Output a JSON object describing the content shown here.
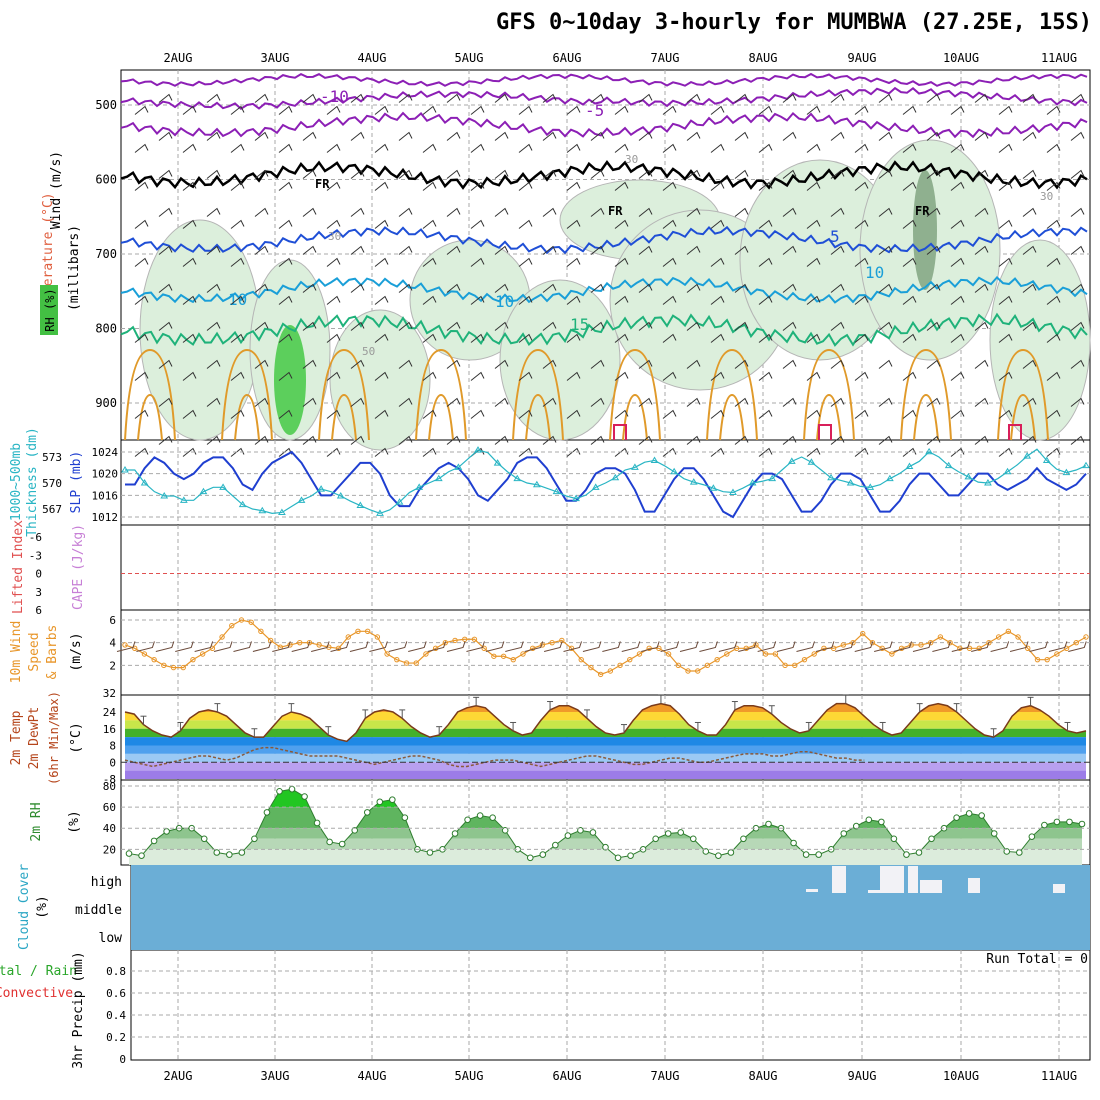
{
  "title": "GFS 0~10day 3-hourly for MUMBWA (27.25E, 15S)",
  "dates": [
    "2AUG",
    "3AUG",
    "4AUG",
    "5AUG",
    "6AUG",
    "7AUG",
    "8AUG",
    "9AUG",
    "10AUG",
    "11AUG"
  ],
  "run_total": "Run Total = 0",
  "colors": {
    "wind_barb": "#333333",
    "temp_purple": "#8c1fb5",
    "temp_blue": "#1f4fd6",
    "temp_cyan": "#1a9fd8",
    "temp_green": "#1fb27a",
    "temp_orange": "#e09a2a",
    "temp_red": "#d81f5a",
    "freezing": "#000000",
    "slp": "#1f3fd0",
    "thickness": "#29b5c4",
    "lifted_index": "#e05050",
    "cape": "#c77fd6",
    "wind_speed": "#e8962a",
    "cloud": "#6baed6",
    "rh_green": "#2bbf2b"
  },
  "panels": {
    "upper": {
      "ylabels": [
        "Wind (m/s)",
        "Temperature (°C)",
        "RH (%)",
        "(millibars)"
      ],
      "pressure_ticks": [
        "500",
        "600",
        "700",
        "800",
        "900"
      ],
      "contour_labels": {
        "m10": "-10",
        "m5": "-5",
        "fr": "FR",
        "t5": "5",
        "t10": "10",
        "t15": "15",
        "rh30": "30",
        "rh50": "50",
        "rh10": "10"
      }
    },
    "thickness": {
      "ylabels": [
        "1000~500mb",
        "Thickness (dm)",
        "SLP (mb)"
      ],
      "left_ticks": [
        "573",
        "570",
        "567"
      ],
      "right_ticks": [
        "1024",
        "1020",
        "1016",
        "1012"
      ]
    },
    "cape": {
      "ylabels": [
        "Lifted Index",
        "CAPE (J/kg)"
      ],
      "ticks": [
        "-6",
        "-3",
        "0",
        "3",
        "6"
      ]
    },
    "wind": {
      "ylabels": [
        "10m Wind",
        "Speed",
        "& Barbs",
        "(m/s)"
      ],
      "ticks": [
        "6",
        "4",
        "2",
        "32"
      ]
    },
    "temp": {
      "ylabels": [
        "2m Temp",
        "2m DewPt",
        "(6hr Min/Max)",
        "(°C)"
      ],
      "ticks": [
        "24",
        "16",
        "8",
        "0",
        "-8"
      ]
    },
    "rh": {
      "ylabels": [
        "2m RH",
        "(%)"
      ],
      "ticks": [
        "80",
        "60",
        "40",
        "20"
      ]
    },
    "cloud": {
      "ylabels": [
        "Cloud Cover",
        "(%)"
      ],
      "ticks": [
        "high",
        "middle",
        "low"
      ]
    },
    "precip": {
      "ylabels": [
        "Total / Rain",
        "Convective",
        "3hr Precip (mm)"
      ],
      "ticks": [
        "0.8",
        "0.6",
        "0.4",
        "0.2",
        "0"
      ]
    }
  },
  "chart_data": [
    {
      "type": "line",
      "panel": "thickness_slp",
      "x_labels_note": "3-hourly steps from 2AUG to 11AUG",
      "series": [
        {
          "name": "SLP (mb)",
          "values": [
            1018,
            1018,
            1021,
            1023,
            1022,
            1020,
            1019,
            1020,
            1022,
            1023,
            1023,
            1021,
            1018,
            1017,
            1020,
            1022,
            1023,
            1024,
            1022,
            1019,
            1016,
            1016,
            1018,
            1020,
            1022,
            1022,
            1020,
            1016,
            1014,
            1014,
            1017,
            1019,
            1021,
            1022,
            1021,
            1019,
            1016,
            1015,
            1017,
            1019,
            1022,
            1023,
            1023,
            1021,
            1018,
            1015,
            1015,
            1017,
            1020,
            1021,
            1021,
            1020,
            1017,
            1013,
            1013,
            1016,
            1019,
            1021,
            1021,
            1019,
            1016,
            1013,
            1012,
            1015,
            1018,
            1020,
            1020,
            1019,
            1016,
            1013,
            1013,
            1015,
            1018,
            1020,
            1020,
            1019,
            1016,
            1013,
            1013,
            1015,
            1018,
            1020,
            1020,
            1018,
            1016,
            1016,
            1018,
            1020,
            1020,
            1018,
            1017,
            1018,
            1019,
            1021,
            1019,
            1018,
            1017,
            1018,
            1020
          ]
        },
        {
          "name": "1000~500mb Thickness (dm)",
          "values": [
            571.5,
            571.5,
            570.0,
            569.0,
            568.5,
            568.5,
            568.0,
            568.0,
            569.0,
            569.5,
            569.5,
            568.5,
            567.5,
            567.0,
            566.8,
            566.5,
            566.6,
            567.3,
            568.0,
            568.5,
            569.3,
            569.0,
            568.5,
            567.9,
            567.4,
            566.9,
            566.5,
            566.9,
            567.8,
            568.9,
            569.5,
            570.0,
            570.5,
            571.3,
            571.8,
            572.8,
            573.8,
            573.5,
            572.3,
            571.3,
            570.5,
            570.0,
            569.8,
            569.4,
            569.0,
            568.5,
            568.2,
            568.6,
            569.5,
            570.0,
            570.6,
            571.5,
            571.8,
            572.4,
            572.6,
            572.0,
            571.3,
            570.5,
            570.1,
            569.8,
            569.4,
            569.0,
            568.9,
            569.4,
            570.0,
            570.2,
            570.5,
            571.5,
            572.5,
            573.0,
            572.4,
            571.5,
            570.6,
            570.3,
            570.0,
            569.6,
            569.5,
            569.8,
            570.5,
            571.1,
            571.9,
            572.5,
            573.6,
            573.0,
            572.0,
            571.3,
            570.7,
            570.1,
            570.0,
            570.5,
            571.3,
            572.1,
            573.1,
            573.9,
            572.6,
            571.6,
            571.2,
            571.5,
            572.0
          ]
        }
      ]
    },
    {
      "type": "line",
      "panel": "10m_wind",
      "series": [
        {
          "name": "10m Wind Speed (m/s)",
          "values": [
            3.8,
            3.5,
            3.0,
            2.5,
            2.0,
            1.8,
            1.8,
            2.5,
            3.0,
            3.5,
            4.5,
            5.5,
            6.0,
            5.8,
            5.0,
            4.2,
            3.6,
            3.8,
            4.0,
            4.0,
            3.8,
            3.6,
            3.5,
            4.5,
            5.0,
            5.0,
            4.5,
            3.0,
            2.5,
            2.2,
            2.2,
            3.0,
            3.5,
            4.0,
            4.2,
            4.3,
            4.3,
            3.5,
            2.8,
            2.8,
            2.5,
            3.0,
            3.5,
            3.8,
            4.0,
            4.2,
            3.5,
            2.5,
            1.8,
            1.2,
            1.5,
            2.0,
            2.5,
            3.0,
            3.5,
            3.5,
            3.0,
            2.0,
            1.5,
            1.5,
            2.0,
            2.5,
            3.0,
            3.5,
            3.5,
            3.8,
            3.0,
            3.0,
            2.0,
            2.0,
            2.5,
            3.0,
            3.5,
            3.5,
            3.8,
            4.0,
            4.8,
            4.0,
            3.5,
            3.0,
            3.5,
            3.8,
            3.8,
            4.0,
            4.5,
            4.0,
            3.5,
            3.5,
            3.5,
            4.0,
            4.5,
            5.0,
            4.5,
            3.5,
            2.5,
            2.5,
            3.0,
            3.5,
            4.0,
            4.5
          ]
        }
      ]
    },
    {
      "type": "area",
      "panel": "2m_temp",
      "series": [
        {
          "name": "2m Temp (°C)",
          "values": [
            24,
            23,
            18,
            15,
            13,
            12,
            15,
            21,
            24,
            25,
            24,
            22,
            18,
            14,
            12,
            12,
            17,
            22,
            24,
            23,
            21,
            17,
            13,
            11,
            10,
            14,
            21,
            24,
            25,
            24,
            21,
            17,
            14,
            12,
            13,
            18,
            24,
            26,
            27,
            26,
            22,
            18,
            15,
            13,
            14,
            20,
            25,
            27,
            27,
            25,
            21,
            17,
            14,
            13,
            14,
            20,
            25,
            27,
            28,
            27,
            23,
            18,
            15,
            13,
            13,
            18,
            25,
            27,
            27,
            26,
            23,
            19,
            16,
            14,
            15,
            20,
            25,
            28,
            28,
            26,
            22,
            18,
            15,
            13,
            14,
            19,
            24,
            27,
            28,
            27,
            24,
            20,
            16,
            13,
            12,
            15,
            22,
            26,
            27,
            25,
            22,
            18,
            15,
            14,
            15
          ]
        },
        {
          "name": "2m DewPt (°C)",
          "values": [
            1,
            0,
            -1,
            -2,
            -1,
            0,
            1,
            2,
            3,
            3,
            2,
            1,
            2,
            4,
            6,
            7,
            7,
            6,
            5,
            4,
            3,
            3,
            3,
            3,
            2,
            1,
            0,
            -1,
            0,
            1,
            2,
            3,
            3,
            2,
            1,
            -1,
            -2,
            -2,
            -1,
            0,
            1,
            1,
            1,
            0,
            -1,
            -2,
            -1,
            0,
            1,
            2,
            3,
            3,
            2,
            1,
            0,
            -1,
            -1,
            0,
            1,
            2,
            2,
            1,
            0,
            0,
            1,
            2,
            3,
            4,
            4,
            4,
            3,
            3,
            4,
            5,
            5,
            4,
            3,
            2,
            2,
            1,
            1
          ]
        }
      ]
    },
    {
      "type": "area",
      "panel": "2m_rh",
      "series": [
        {
          "name": "2m RH (%)",
          "values": [
            16,
            14,
            28,
            37,
            40,
            40,
            30,
            17,
            15,
            17,
            30,
            55,
            75,
            77,
            70,
            45,
            27,
            25,
            38,
            55,
            65,
            67,
            50,
            20,
            17,
            20,
            35,
            48,
            52,
            50,
            38,
            20,
            12,
            15,
            24,
            33,
            38,
            36,
            22,
            12,
            14,
            20,
            30,
            35,
            36,
            30,
            18,
            14,
            17,
            30,
            40,
            44,
            40,
            26,
            15,
            15,
            20,
            35,
            42,
            48,
            46,
            30,
            15,
            17,
            30,
            40,
            50,
            54,
            52,
            35,
            18,
            17,
            32,
            43,
            46,
            46,
            44
          ]
        }
      ]
    },
    {
      "type": "bar",
      "panel": "cloud_cover_high",
      "categories": [
        "9AUG-early",
        "9AUG-mid",
        "9AUG-late",
        "10AUG-early",
        "10AUG-mid",
        "10AUG-late",
        "11AUG-mid"
      ],
      "values": [
        10,
        100,
        20,
        100,
        100,
        60,
        30
      ]
    },
    {
      "type": "bar",
      "panel": "3hr_precip",
      "values": [
        0,
        0,
        0,
        0,
        0,
        0,
        0,
        0,
        0,
        0
      ],
      "ylim": [
        0,
        0.9
      ]
    }
  ]
}
